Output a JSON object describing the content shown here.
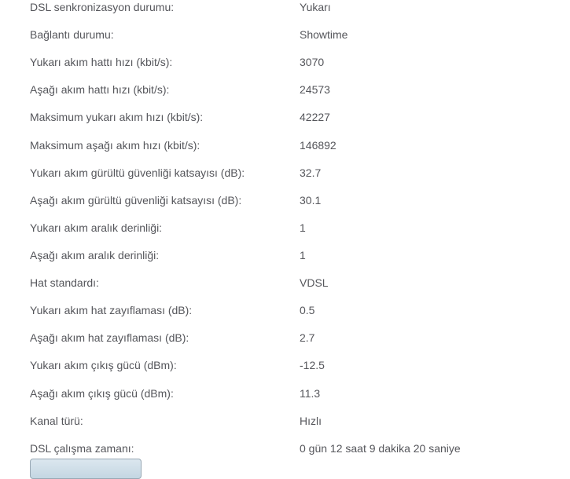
{
  "page": {
    "background_color": "#ffffff",
    "text_color": "#55565b"
  },
  "status_table": {
    "rows": [
      {
        "label": "DSL senkronizasyon durumu:",
        "value": "Yukarı"
      },
      {
        "label": "Bağlantı durumu:",
        "value": "Showtime"
      },
      {
        "label": "Yukarı akım hattı hızı (kbit/s):",
        "value": "3070"
      },
      {
        "label": "Aşağı akım hattı hızı (kbit/s):",
        "value": "24573"
      },
      {
        "label": "Maksimum yukarı akım hızı (kbit/s):",
        "value": "42227"
      },
      {
        "label": "Maksimum aşağı akım hızı (kbit/s):",
        "value": "146892"
      },
      {
        "label": "Yukarı akım gürültü güvenliği katsayısı (dB):",
        "value": "32.7"
      },
      {
        "label": "Aşağı akım gürültü güvenliği katsayısı (dB):",
        "value": "30.1"
      },
      {
        "label": "Yukarı akım aralık derinliği:",
        "value": "1"
      },
      {
        "label": "Aşağı akım aralık derinliği:",
        "value": "1"
      },
      {
        "label": "Hat standardı:",
        "value": "VDSL"
      },
      {
        "label": "Yukarı akım hat zayıflaması (dB):",
        "value": "0.5"
      },
      {
        "label": "Aşağı akım hat zayıflaması (dB):",
        "value": "2.7"
      },
      {
        "label": "Yukarı akım çıkış gücü (dBm):",
        "value": "-12.5"
      },
      {
        "label": "Aşağı akım çıkış gücü (dBm):",
        "value": "11.3"
      },
      {
        "label": "Kanal türü:",
        "value": "Hızlı"
      },
      {
        "label": "DSL çalışma zamanı:",
        "value": "0 gün 12 saat 9 dakika 20 saniye"
      }
    ]
  },
  "footer": {
    "button": {
      "label": "",
      "fill_top": "#dce7ef",
      "fill_bottom": "#c3d6e2",
      "border_color": "#98a8b4"
    }
  }
}
